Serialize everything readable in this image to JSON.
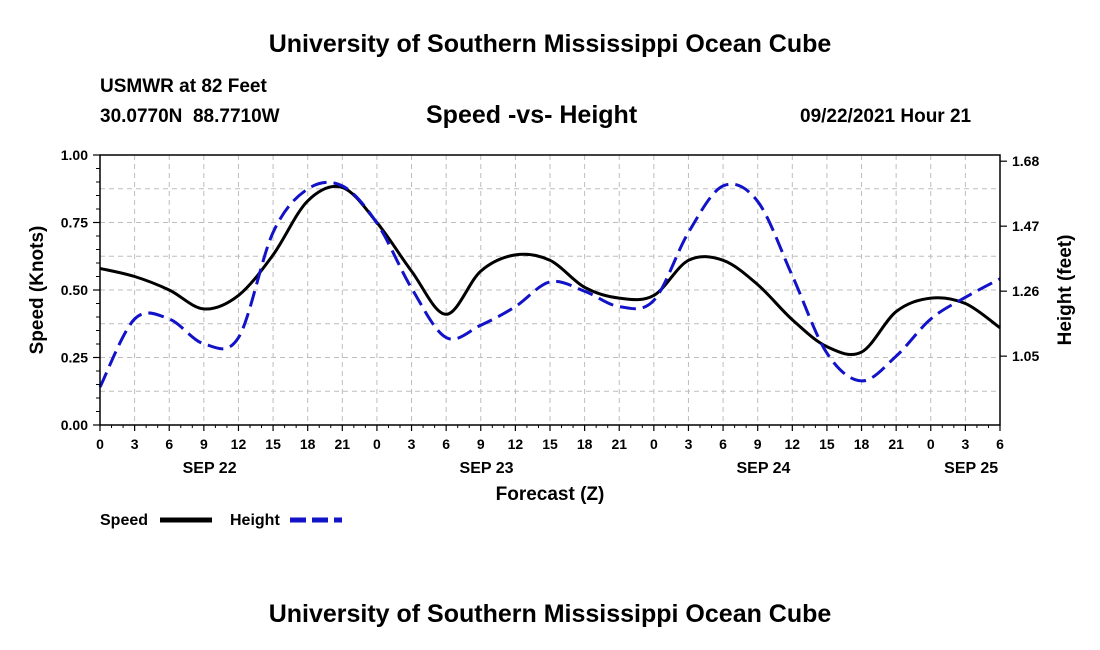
{
  "header": {
    "title_top": "University of Southern Mississippi Ocean Cube",
    "station": "USMWR at 82 Feet",
    "coords": "30.0770N  88.7710W",
    "chart_title": "Speed -vs- Height",
    "issued": "09/22/2021 Hour 21"
  },
  "footer": {
    "title_bottom": "University of Southern Mississippi Ocean Cube"
  },
  "legend": {
    "speed_label": "Speed",
    "height_label": "Height"
  },
  "colors": {
    "speed": "#000000",
    "height": "#1212c8",
    "grid": "#bdbdbd"
  },
  "chart_data": {
    "type": "line",
    "title": "Speed -vs- Height",
    "xlabel": "Forecast (Z)",
    "ylabel": "Speed (Knots)",
    "y2label": "Height (feet)",
    "xlim": [
      0,
      78
    ],
    "ylim": [
      0,
      1.0
    ],
    "y2lim": [
      0.8275,
      1.7
    ],
    "x_tick_values": [
      0,
      3,
      6,
      9,
      12,
      15,
      18,
      21,
      24,
      27,
      30,
      33,
      36,
      39,
      42,
      45,
      48,
      51,
      54,
      57,
      60,
      63,
      66,
      69,
      72,
      75,
      78
    ],
    "x_tick_labels": [
      "0",
      "3",
      "6",
      "9",
      "12",
      "15",
      "18",
      "21",
      "0",
      "3",
      "6",
      "9",
      "12",
      "15",
      "18",
      "21",
      "0",
      "3",
      "6",
      "9",
      "12",
      "15",
      "18",
      "21",
      "0",
      "3",
      "6"
    ],
    "date_labels": [
      {
        "x": 9.5,
        "label": "SEP 22"
      },
      {
        "x": 33.5,
        "label": "SEP 23"
      },
      {
        "x": 57.5,
        "label": "SEP 24"
      },
      {
        "x": 75.5,
        "label": "SEP 25"
      }
    ],
    "y_ticks": [
      0.0,
      0.25,
      0.5,
      0.75,
      1.0
    ],
    "y_tick_labels": [
      "0.00",
      "0.25",
      "0.50",
      "0.75",
      "1.00"
    ],
    "y2_ticks": [
      1.05,
      1.26,
      1.47,
      1.68
    ],
    "y2_tick_labels": [
      "1.05",
      "1.26",
      "1.47",
      "1.68"
    ],
    "grid": true,
    "series": [
      {
        "name": "Speed",
        "axis": "left",
        "style": "solid",
        "x": [
          0,
          3,
          6,
          9,
          12,
          15,
          18,
          21,
          24,
          27,
          30,
          33,
          36,
          39,
          42,
          45,
          48,
          51,
          54,
          57,
          60,
          63,
          66,
          69,
          72,
          75,
          78
        ],
        "values": [
          0.58,
          0.55,
          0.5,
          0.43,
          0.48,
          0.63,
          0.83,
          0.88,
          0.75,
          0.57,
          0.41,
          0.57,
          0.63,
          0.61,
          0.51,
          0.47,
          0.48,
          0.61,
          0.61,
          0.52,
          0.39,
          0.29,
          0.27,
          0.42,
          0.47,
          0.45,
          0.36
        ]
      },
      {
        "name": "Height",
        "axis": "right",
        "style": "dashed",
        "x": [
          0,
          3,
          6,
          9,
          12,
          15,
          18,
          21,
          24,
          27,
          30,
          33,
          36,
          39,
          42,
          45,
          48,
          51,
          54,
          57,
          60,
          63,
          66,
          69,
          72,
          75,
          78
        ],
        "values": [
          0.95,
          1.17,
          1.17,
          1.09,
          1.11,
          1.45,
          1.59,
          1.6,
          1.48,
          1.27,
          1.11,
          1.15,
          1.21,
          1.29,
          1.26,
          1.21,
          1.23,
          1.45,
          1.6,
          1.55,
          1.31,
          1.06,
          0.97,
          1.05,
          1.17,
          1.24,
          1.3
        ]
      }
    ]
  }
}
